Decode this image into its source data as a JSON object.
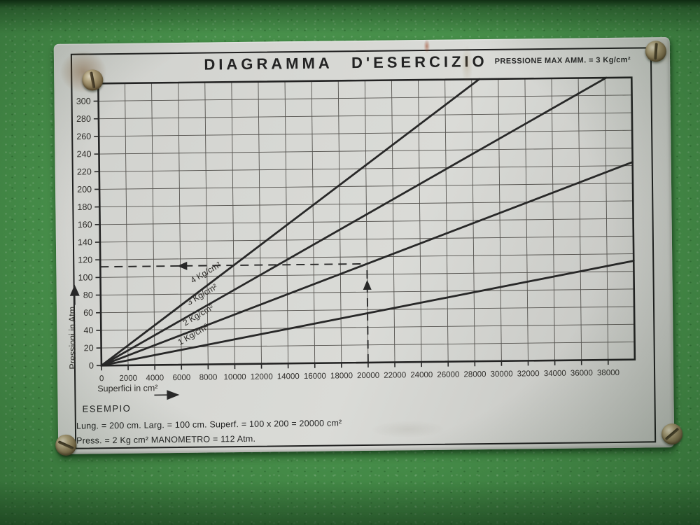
{
  "plate": {
    "title": "DIAGRAMMA D'ESERCIZIO",
    "max_pressure_note": "PRESSIONE MAX AMM. = 3 Kg/cm²",
    "example": {
      "heading": "ESEMPIO",
      "line1": "Lung. = 200 cm. Larg. = 100 cm. Superf. = 100 x 200 = 20000 cm²",
      "line2": "Press. = 2 Kg cm² MANOMETRO = 112 Atm."
    }
  },
  "icons": {
    "screws": [
      "screw-top-left",
      "screw-top-right",
      "screw-bottom-left",
      "screw-bottom-right"
    ],
    "axis_arrows": [
      "up-arrow-icon",
      "right-arrow-icon"
    ],
    "example_arrows": [
      "left-arrow-icon",
      "up-arrow-icon"
    ]
  },
  "colors": {
    "panel_green": "#478f4a",
    "plate_gray": "#d4d5d1",
    "ink": "#282828",
    "grid": "#55534f",
    "rust": "#7a4e24"
  },
  "chart_data": {
    "type": "line",
    "title": "DIAGRAMMA D'ESERCIZIO",
    "subtitle": "PRESSIONE MAX AMM. = 3 Kg/cm²",
    "xlabel": "Superfici in cm²",
    "ylabel": "Pressioni in Atm",
    "xlim": [
      0,
      40000
    ],
    "ylim": [
      0,
      320
    ],
    "x_ticks": [
      0,
      2000,
      4000,
      6000,
      8000,
      10000,
      12000,
      14000,
      16000,
      18000,
      20000,
      22000,
      24000,
      26000,
      28000,
      30000,
      32000,
      34000,
      36000,
      38000
    ],
    "y_ticks": [
      0,
      20,
      40,
      60,
      80,
      100,
      120,
      140,
      160,
      180,
      200,
      220,
      240,
      260,
      280,
      300
    ],
    "grid": true,
    "legend_position": "inline-labels-on-lines",
    "series": [
      {
        "name": "1 Kg/cm²",
        "pressure_kg_cm2": 1,
        "atm_per_1000_cm2": 2.8,
        "points": [
          [
            0,
            0
          ],
          [
            40000,
            112
          ]
        ]
      },
      {
        "name": "2 Kg/cm²",
        "pressure_kg_cm2": 2,
        "atm_per_1000_cm2": 5.6,
        "points": [
          [
            0,
            0
          ],
          [
            40000,
            224
          ]
        ]
      },
      {
        "name": "3 Kg/cm²",
        "pressure_kg_cm2": 3,
        "atm_per_1000_cm2": 8.4,
        "points": [
          [
            0,
            0
          ],
          [
            38095,
            320
          ]
        ]
      },
      {
        "name": "4 Kg/cm²",
        "pressure_kg_cm2": 4,
        "atm_per_1000_cm2": 11.2,
        "points": [
          [
            0,
            0
          ],
          [
            28571,
            320
          ]
        ]
      }
    ],
    "example_marker": {
      "superficie_cm2": 20000,
      "pressione_atm": 112,
      "style": "dashed-with-arrows"
    }
  }
}
